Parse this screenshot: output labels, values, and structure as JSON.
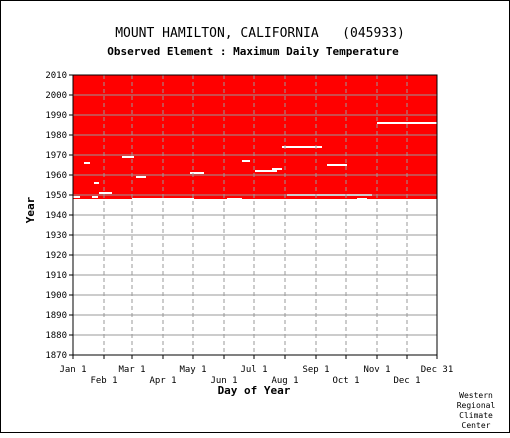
{
  "chart_data": {
    "type": "heatmap",
    "title": "MOUNT HAMILTON, CALIFORNIA   (045933)",
    "subtitle": "Observed Element : Maximum Daily Temperature",
    "xlabel": "Day of Year",
    "ylabel": "Year",
    "xlim": [
      1,
      365
    ],
    "ylim": [
      1870,
      2010
    ],
    "x_ticks_upper": [
      {
        "label": "Jan 1",
        "day": 1
      },
      {
        "label": "Mar 1",
        "day": 60
      },
      {
        "label": "May 1",
        "day": 121
      },
      {
        "label": "Jul 1",
        "day": 182
      },
      {
        "label": "Sep 1",
        "day": 244
      },
      {
        "label": "Nov 1",
        "day": 305
      },
      {
        "label": "Dec 31",
        "day": 365
      }
    ],
    "x_ticks_lower": [
      {
        "label": "Feb 1",
        "day": 32
      },
      {
        "label": "Apr 1",
        "day": 91
      },
      {
        "label": "Jun 1",
        "day": 152
      },
      {
        "label": "Aug 1",
        "day": 213
      },
      {
        "label": "Oct 1",
        "day": 274
      },
      {
        "label": "Dec 1",
        "day": 335
      }
    ],
    "y_ticks": [
      1870,
      1880,
      1890,
      1900,
      1910,
      1920,
      1930,
      1940,
      1950,
      1960,
      1970,
      1980,
      1990,
      2000,
      2010
    ],
    "grid": true,
    "series": [
      {
        "status": "observed",
        "color": "#ff0000",
        "year_start": 1948,
        "year_end": 2010
      },
      {
        "status": "missing",
        "color": "#ffffff",
        "year_start": 1870,
        "year_end": 1948
      }
    ],
    "missing_gaps": [
      {
        "year": 1986,
        "day_start": 305,
        "day_end": 365
      },
      {
        "year": 1974,
        "day_start": 210,
        "day_end": 250
      },
      {
        "year": 1969,
        "day_start": 50,
        "day_end": 62
      },
      {
        "year": 1967,
        "day_start": 170,
        "day_end": 178
      },
      {
        "year": 1966,
        "day_start": 12,
        "day_end": 18
      },
      {
        "year": 1965,
        "day_start": 255,
        "day_end": 275
      },
      {
        "year": 1963,
        "day_start": 200,
        "day_end": 210
      },
      {
        "year": 1962,
        "day_start": 183,
        "day_end": 205
      },
      {
        "year": 1961,
        "day_start": 118,
        "day_end": 132
      },
      {
        "year": 1959,
        "day_start": 64,
        "day_end": 74
      },
      {
        "year": 1956,
        "day_start": 22,
        "day_end": 27
      },
      {
        "year": 1951,
        "day_start": 27,
        "day_end": 40
      },
      {
        "year": 1950,
        "day_start": 215,
        "day_end": 300
      },
      {
        "year": 1949,
        "day_start": 1,
        "day_end": 8
      },
      {
        "year": 1949,
        "day_start": 20,
        "day_end": 26
      },
      {
        "year": 1948,
        "day_start": 60,
        "day_end": 122
      },
      {
        "year": 1948,
        "day_start": 155,
        "day_end": 170
      },
      {
        "year": 1948,
        "day_start": 285,
        "day_end": 295
      }
    ]
  },
  "credit": [
    "Western",
    "Regional",
    "Climate",
    "Center"
  ],
  "colors": {
    "observed": "#ff0000",
    "missing": "#ffffff",
    "grid": "#999999",
    "frame": "#000000"
  }
}
